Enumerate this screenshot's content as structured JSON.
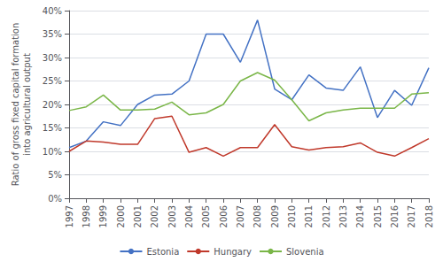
{
  "chart_data": {
    "type": "line",
    "y_label": "Ratio of gross fixed capital formation\ninto agricultural output",
    "x": [
      1997,
      1998,
      1999,
      2000,
      2001,
      2002,
      2003,
      2004,
      2005,
      2006,
      2007,
      2008,
      2009,
      2010,
      2011,
      2012,
      2013,
      2014,
      2015,
      2016,
      2017,
      2018
    ],
    "series": [
      {
        "name": "Estonia",
        "color": "#4472C4",
        "values": [
          0.108,
          0.122,
          0.163,
          0.155,
          0.2,
          0.22,
          0.222,
          0.25,
          0.35,
          0.35,
          0.29,
          0.38,
          0.233,
          0.21,
          0.263,
          0.235,
          0.23,
          0.28,
          0.172,
          0.23,
          0.198,
          0.278
        ]
      },
      {
        "name": "Hungary",
        "color": "#C0392B",
        "values": [
          0.1,
          0.122,
          0.12,
          0.115,
          0.115,
          0.17,
          0.175,
          0.098,
          0.108,
          0.09,
          0.108,
          0.108,
          0.157,
          0.11,
          0.103,
          0.108,
          0.11,
          0.118,
          0.098,
          0.09,
          0.108,
          0.127
        ]
      },
      {
        "name": "Slovenia",
        "color": "#7AB648",
        "values": [
          0.187,
          0.195,
          0.22,
          0.188,
          0.188,
          0.19,
          0.205,
          0.178,
          0.182,
          0.2,
          0.25,
          0.268,
          0.252,
          0.21,
          0.165,
          0.182,
          0.188,
          0.192,
          0.192,
          0.192,
          0.222,
          0.225
        ]
      }
    ],
    "xlim": [
      1997,
      2018
    ],
    "xticks": [
      1997,
      1998,
      1999,
      2000,
      2001,
      2002,
      2003,
      2004,
      2005,
      2006,
      2007,
      2008,
      2009,
      2010,
      2011,
      2012,
      2013,
      2014,
      2015,
      2016,
      2017,
      2018
    ],
    "ylim": [
      0.0,
      0.4
    ],
    "yticks": [
      {
        "value": 0.0,
        "label": "0%"
      },
      {
        "value": 0.05,
        "label": "5%"
      },
      {
        "value": 0.1,
        "label": "10%"
      },
      {
        "value": 0.15,
        "label": "15%"
      },
      {
        "value": 0.2,
        "label": "20%"
      },
      {
        "value": 0.25,
        "label": "25%"
      },
      {
        "value": 0.3,
        "label": "30%"
      },
      {
        "value": 0.35,
        "label": "35%"
      },
      {
        "value": 0.4,
        "label": "40%"
      }
    ],
    "grid": true,
    "legend": "bottom"
  }
}
